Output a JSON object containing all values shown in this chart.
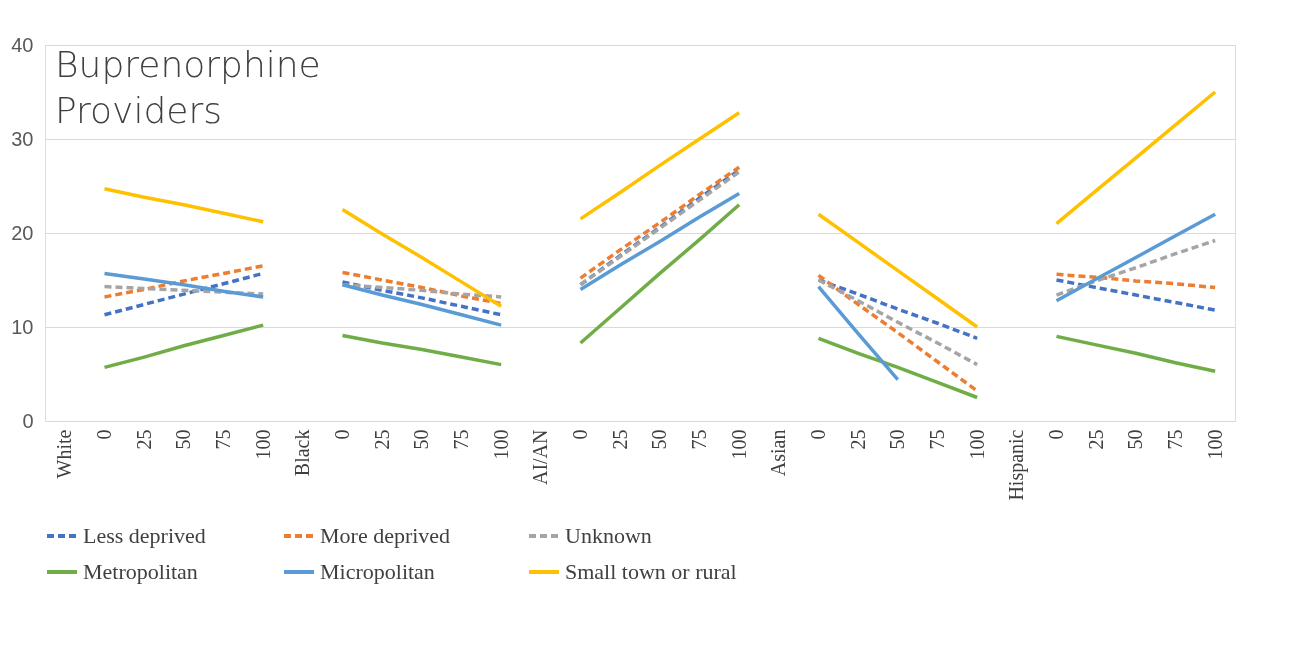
{
  "chart_data": {
    "type": "line",
    "title": "Buprenorphine Providers",
    "categories": [
      "White",
      "0",
      "25",
      "50",
      "75",
      "100",
      "Black",
      "0",
      "25",
      "50",
      "75",
      "100",
      "AI/AN",
      "0",
      "25",
      "50",
      "75",
      "100",
      "Asian",
      "0",
      "25",
      "50",
      "75",
      "100",
      "Hispanic",
      "0",
      "25",
      "50",
      "75",
      "100"
    ],
    "series": [
      {
        "name": "Less deprived",
        "color": "#4472c4",
        "line_style": "dashed",
        "values": [
          null,
          11.3,
          12.4,
          13.5,
          14.6,
          15.7,
          null,
          14.8,
          13.9,
          13.1,
          12.2,
          11.3,
          null,
          14.5,
          17.6,
          20.6,
          23.7,
          26.7,
          null,
          15.0,
          13.5,
          11.9,
          10.4,
          8.8,
          null,
          15.0,
          14.2,
          13.4,
          12.6,
          11.8
        ]
      },
      {
        "name": "More deprived",
        "color": "#ed7d31",
        "line_style": "dashed",
        "values": [
          null,
          13.2,
          14.0,
          14.9,
          15.7,
          16.5,
          null,
          15.8,
          15.0,
          14.2,
          13.3,
          12.5,
          null,
          15.2,
          18.2,
          21.1,
          24.1,
          27.0,
          null,
          15.5,
          12.4,
          9.4,
          6.3,
          3.2,
          null,
          15.6,
          15.3,
          14.9,
          14.6,
          14.2
        ]
      },
      {
        "name": "Unknown",
        "color": "#a5a5a5",
        "line_style": "dashed",
        "values": [
          null,
          14.3,
          14.1,
          13.9,
          13.7,
          13.5,
          null,
          14.5,
          14.2,
          13.9,
          13.5,
          13.2,
          null,
          14.5,
          17.5,
          20.5,
          23.5,
          26.5,
          null,
          15.0,
          12.8,
          10.5,
          8.3,
          6.0,
          null,
          13.4,
          14.9,
          16.3,
          17.8,
          19.2
        ]
      },
      {
        "name": "Metropolitan",
        "color": "#70ad47",
        "line_style": "solid",
        "values": [
          null,
          5.7,
          6.8,
          8.0,
          9.1,
          10.2,
          null,
          9.1,
          8.3,
          7.6,
          6.8,
          6.0,
          null,
          8.3,
          12.0,
          15.7,
          19.3,
          23.0,
          null,
          8.8,
          7.2,
          5.7,
          4.1,
          2.5,
          null,
          9.0,
          8.1,
          7.2,
          6.2,
          5.3
        ]
      },
      {
        "name": "Micropolitan",
        "color": "#5b9bd5",
        "line_style": "solid",
        "values": [
          null,
          15.7,
          15.1,
          14.5,
          13.8,
          13.2,
          null,
          14.5,
          13.4,
          12.4,
          11.3,
          10.2,
          null,
          14.0,
          16.6,
          19.1,
          21.7,
          24.2,
          null,
          14.3,
          9.3,
          4.4,
          null,
          null,
          null,
          12.8,
          15.1,
          17.4,
          19.7,
          22.0
        ]
      },
      {
        "name": "Small town or rural",
        "color": "#ffc000",
        "line_style": "solid",
        "values": [
          null,
          24.7,
          23.8,
          23.0,
          22.1,
          21.2,
          null,
          22.5,
          19.9,
          17.4,
          14.8,
          12.2,
          null,
          21.5,
          24.3,
          27.2,
          30.0,
          32.8,
          null,
          22.0,
          19.0,
          16.0,
          13.0,
          10.0,
          null,
          21.0,
          24.5,
          28.0,
          31.5,
          35.0
        ]
      }
    ],
    "ylim": [
      0,
      40
    ],
    "yticks": [
      0,
      10,
      20,
      30,
      40
    ],
    "grid": "y",
    "legend": "bottom",
    "marker": "none"
  }
}
